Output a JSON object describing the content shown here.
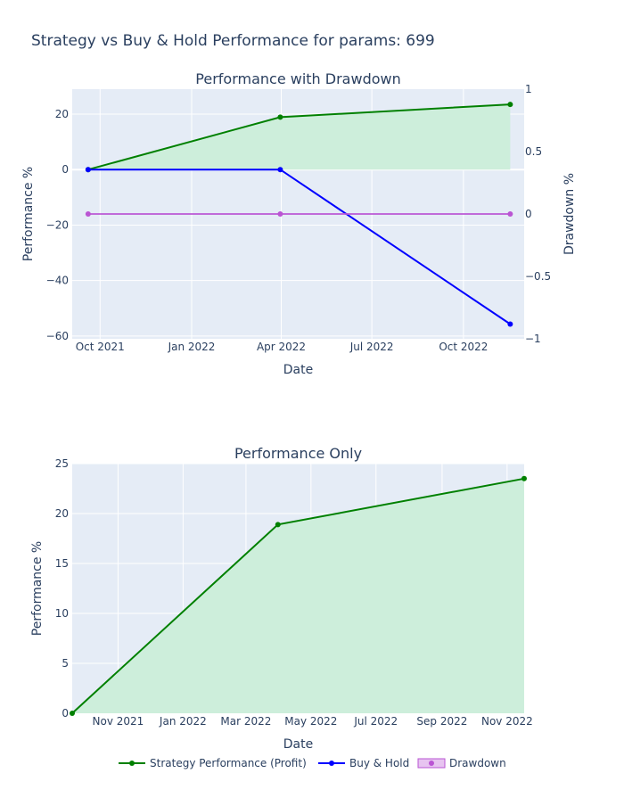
{
  "title": "Strategy vs Buy & Hold Performance for params: 699",
  "chart_data": [
    {
      "type": "line",
      "title": "Performance with Drawdown",
      "xlabel": "Date",
      "ylabel": "Performance %",
      "y2label": "Drawdown %",
      "x_ticks": [
        "Oct 2021",
        "Jan 2022",
        "Apr 2022",
        "Jul 2022",
        "Oct 2022"
      ],
      "x_tick_dates": [
        "2021-10-01",
        "2022-01-01",
        "2022-04-01",
        "2022-07-01",
        "2022-10-01"
      ],
      "x_range": [
        "2021-09-03",
        "2022-12-01"
      ],
      "ylim": [
        -61,
        29
      ],
      "y_ticks": [
        "20",
        "0",
        "−20",
        "−40",
        "−60"
      ],
      "y_tick_values": [
        20,
        0,
        -20,
        -40,
        -60
      ],
      "y2lim": [
        -1,
        1
      ],
      "y2_ticks": [
        "1",
        "0.5",
        "0",
        "−0.5",
        "−1"
      ],
      "y2_tick_values": [
        1,
        0.5,
        0,
        -0.5,
        -1
      ],
      "grid": true,
      "series": [
        {
          "name": "Strategy Performance (Profit)",
          "color": "#008000",
          "fill": "#cdeedb",
          "axis": "y",
          "x": [
            "2021-09-19",
            "2022-03-31",
            "2022-11-17"
          ],
          "values": [
            0,
            18.9,
            23.5
          ]
        },
        {
          "name": "Buy & Hold",
          "color": "#0000ff",
          "axis": "y",
          "x": [
            "2021-09-19",
            "2022-03-31",
            "2022-11-17"
          ],
          "values": [
            0,
            0,
            -55.7
          ]
        },
        {
          "name": "Drawdown",
          "color": "#ba55d3",
          "axis": "y2",
          "x": [
            "2021-09-19",
            "2022-03-31",
            "2022-11-17"
          ],
          "values": [
            0,
            0,
            0
          ]
        }
      ]
    },
    {
      "type": "area",
      "title": "Performance Only",
      "xlabel": "Date",
      "ylabel": "Performance %",
      "x_ticks": [
        "Nov 2021",
        "Jan 2022",
        "Mar 2022",
        "May 2022",
        "Jul 2022",
        "Sep 2022",
        "Nov 2022"
      ],
      "x_tick_dates": [
        "2021-11-01",
        "2022-01-01",
        "2022-03-01",
        "2022-05-01",
        "2022-07-01",
        "2022-09-01",
        "2022-11-01"
      ],
      "x_range": [
        "2021-09-19",
        "2022-11-17"
      ],
      "ylim": [
        0,
        25
      ],
      "y_ticks": [
        "25",
        "20",
        "15",
        "10",
        "5",
        "0"
      ],
      "y_tick_values": [
        25,
        20,
        15,
        10,
        5,
        0
      ],
      "grid": true,
      "series": [
        {
          "name": "Strategy Performance (Profit)",
          "color": "#008000",
          "fill": "#cdeedb",
          "x": [
            "2021-09-19",
            "2022-03-31",
            "2022-11-17"
          ],
          "values": [
            0,
            18.9,
            23.5
          ]
        }
      ]
    }
  ],
  "legend": {
    "placement": "bottom",
    "items": [
      {
        "label": "Strategy Performance (Profit)",
        "color": "#008000",
        "style": "line-marker"
      },
      {
        "label": "Buy & Hold",
        "color": "#0000ff",
        "style": "line-marker"
      },
      {
        "label": "Drawdown",
        "color": "#ba55d3",
        "style": "fill-marker"
      }
    ]
  }
}
